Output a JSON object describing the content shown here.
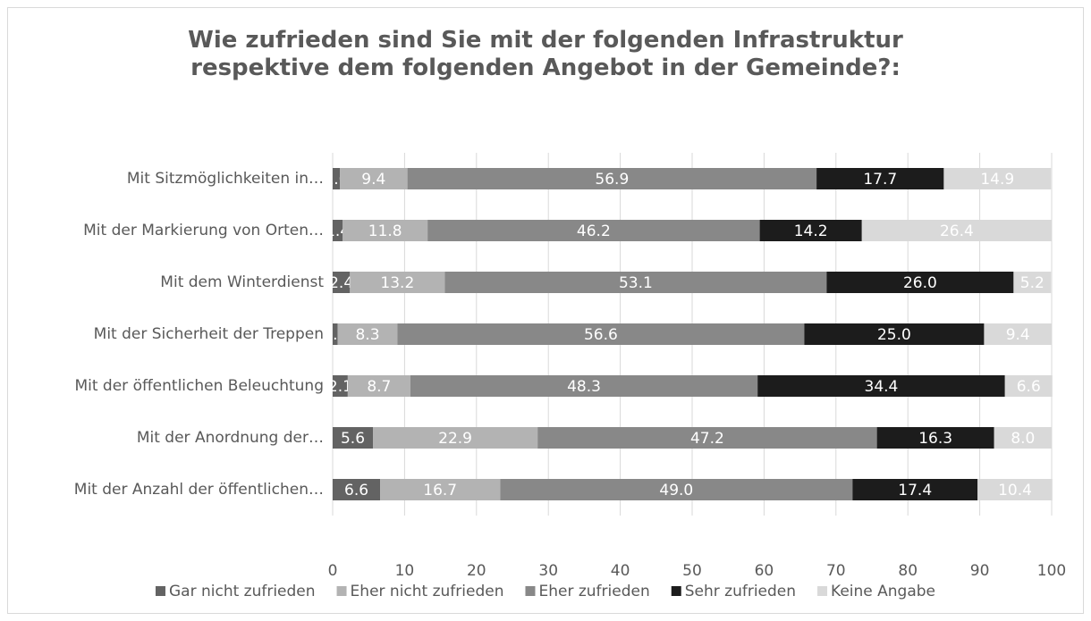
{
  "chart_data": {
    "type": "stacked-barh",
    "title": "Wie zufrieden sind Sie mit der folgenden Infrastruktur respektive dem folgenden Angebot in der Gemeinde?:",
    "categories": [
      "Mit Sitzmöglichkeiten in…",
      "Mit der Markierung von Orten…",
      "Mit dem Winterdienst",
      "Mit der Sicherheit der Treppen",
      "Mit der öffentlichen Beleuchtung",
      "Mit der Anordnung der…",
      "Mit der Anzahl der öffentlichen…"
    ],
    "series": [
      {
        "name": "Gar nicht zufrieden",
        "color": "#636363",
        "values": [
          1.0,
          1.4,
          2.4,
          0.7,
          2.1,
          5.6,
          6.6
        ],
        "value_labels": [
          "1.0",
          "1.4",
          "2.4",
          "0.7",
          "2.1",
          "5.6",
          "6.6"
        ]
      },
      {
        "name": "Eher nicht zufrieden",
        "color": "#b3b3b3",
        "values": [
          9.4,
          11.8,
          13.2,
          8.3,
          8.7,
          22.9,
          16.7
        ],
        "value_labels": [
          "9.4",
          "11.8",
          "13.2",
          "8.3",
          "8.7",
          "22.9",
          "16.7"
        ]
      },
      {
        "name": "Eher zufrieden",
        "color": "#888888",
        "values": [
          56.9,
          46.2,
          53.1,
          56.6,
          48.3,
          47.2,
          49.0
        ],
        "value_labels": [
          "56.9",
          "46.2",
          "53.1",
          "56.6",
          "48.3",
          "47.2",
          "49.0"
        ]
      },
      {
        "name": "Sehr zufrieden",
        "color": "#1c1c1c",
        "values": [
          17.7,
          14.2,
          26.0,
          25.0,
          34.4,
          16.3,
          17.4
        ],
        "value_labels": [
          "17.7",
          "14.2",
          "26.0",
          "25.0",
          "34.4",
          "16.3",
          "17.4"
        ]
      },
      {
        "name": "Keine Angabe",
        "color": "#d9d9d9",
        "values": [
          14.9,
          26.4,
          5.2,
          9.4,
          6.6,
          8.0,
          10.4
        ],
        "value_labels": [
          "14.9",
          "26.4",
          "5.2",
          "9.4",
          "6.6",
          "8.0",
          "10.4"
        ]
      }
    ],
    "xlim": [
      0,
      100
    ],
    "xticks": [
      0,
      10,
      20,
      30,
      40,
      50,
      60,
      70,
      80,
      90,
      100
    ],
    "grid": true,
    "legend": "bottom"
  }
}
